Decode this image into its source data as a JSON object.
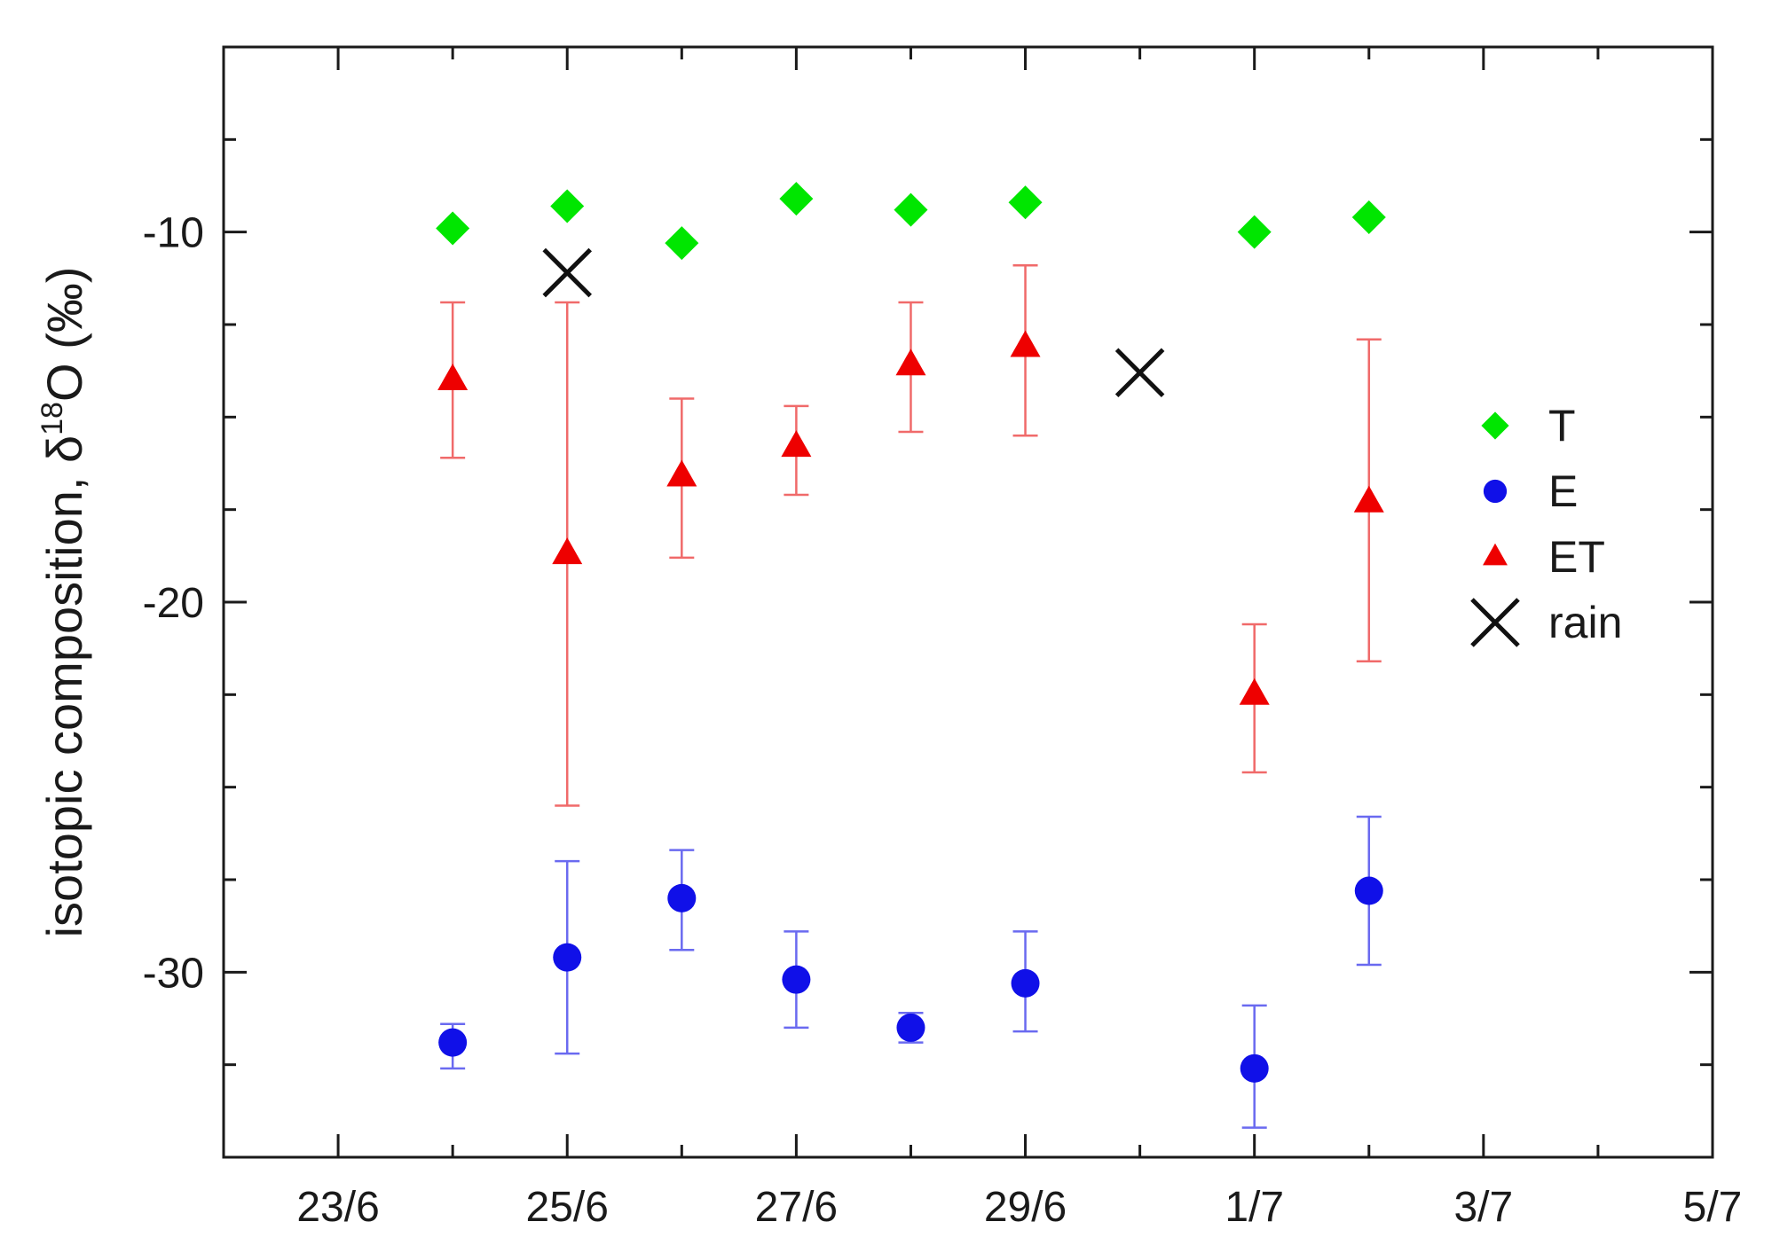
{
  "chart_data": {
    "type": "scatter",
    "xlabel": "",
    "ylabel": "isotopic composition, δ",
    "ylabel_sup": "18",
    "ylabel_tail": "O (‰)",
    "x_axis": {
      "ticks": [
        "23/6",
        "25/6",
        "27/6",
        "29/6",
        "1/7",
        "3/7",
        "5/7"
      ],
      "range": [
        "22/6",
        "5/7"
      ]
    },
    "y_axis": {
      "ticks": [
        -10,
        -20,
        -30
      ],
      "range": [
        -35,
        -5
      ]
    },
    "legend_position": "right",
    "series": [
      {
        "name": "T",
        "marker": "diamond",
        "color": "#00e600",
        "points": [
          {
            "x": "24/6",
            "y": -9.9
          },
          {
            "x": "25/6",
            "y": -9.3
          },
          {
            "x": "26/6",
            "y": -10.3
          },
          {
            "x": "27/6",
            "y": -9.1
          },
          {
            "x": "28/6",
            "y": -9.4
          },
          {
            "x": "29/6",
            "y": -9.2
          },
          {
            "x": "1/7",
            "y": -10.0
          },
          {
            "x": "2/7",
            "y": -9.6
          }
        ]
      },
      {
        "name": "E",
        "marker": "circle",
        "color": "#1010e8",
        "points": [
          {
            "x": "24/6",
            "y": -31.9,
            "err_low": -32.6,
            "err_high": -31.4
          },
          {
            "x": "25/6",
            "y": -29.6,
            "err_low": -32.2,
            "err_high": -27.0
          },
          {
            "x": "26/6",
            "y": -28.0,
            "err_low": -29.4,
            "err_high": -26.7
          },
          {
            "x": "27/6",
            "y": -30.2,
            "err_low": -31.5,
            "err_high": -28.9
          },
          {
            "x": "28/6",
            "y": -31.5,
            "err_low": -31.9,
            "err_high": -31.1
          },
          {
            "x": "29/6",
            "y": -30.3,
            "err_low": -31.6,
            "err_high": -28.9
          },
          {
            "x": "1/7",
            "y": -32.6,
            "err_low": -34.2,
            "err_high": -30.9
          },
          {
            "x": "2/7",
            "y": -27.8,
            "err_low": -29.8,
            "err_high": -25.8
          }
        ]
      },
      {
        "name": "ET",
        "marker": "triangle",
        "color": "#ee0000",
        "points": [
          {
            "x": "24/6",
            "y": -14.0,
            "err_low": -16.1,
            "err_high": -11.9
          },
          {
            "x": "25/6",
            "y": -18.7,
            "err_low": -25.5,
            "err_high": -11.9
          },
          {
            "x": "26/6",
            "y": -16.6,
            "err_low": -18.8,
            "err_high": -14.5
          },
          {
            "x": "27/6",
            "y": -15.8,
            "err_low": -17.1,
            "err_high": -14.7
          },
          {
            "x": "28/6",
            "y": -13.6,
            "err_low": -15.4,
            "err_high": -11.9
          },
          {
            "x": "29/6",
            "y": -13.1,
            "err_low": -15.5,
            "err_high": -10.9
          },
          {
            "x": "1/7",
            "y": -22.5,
            "err_low": -24.6,
            "err_high": -20.6
          },
          {
            "x": "2/7",
            "y": -17.3,
            "err_low": -21.6,
            "err_high": -12.9
          }
        ]
      },
      {
        "name": "rain",
        "marker": "x",
        "color": "#111111",
        "points": [
          {
            "x": "25/6",
            "y": -11.1
          },
          {
            "x": "30/6",
            "y": -13.8
          }
        ]
      }
    ]
  }
}
